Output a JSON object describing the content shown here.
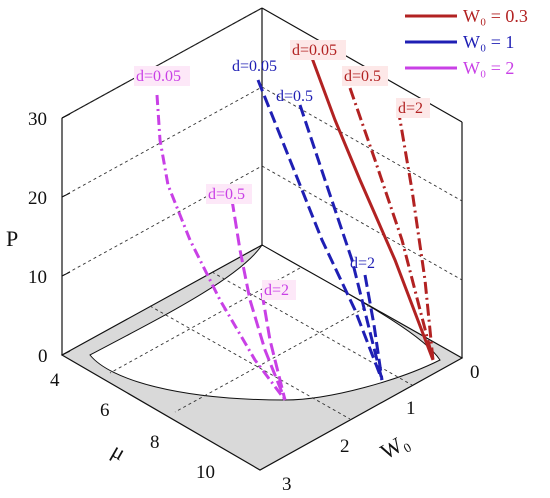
{
  "chart_data": {
    "type": "line",
    "subtype": "3d",
    "zlabel": "P",
    "xlabel": "W₀",
    "ylabel": "μ",
    "zticks": [
      "0",
      "10",
      "20",
      "30"
    ],
    "xticks": [
      "0",
      "1",
      "2",
      "3"
    ],
    "yticks": [
      "4",
      "6",
      "8",
      "10"
    ],
    "zlim": [
      0,
      30
    ],
    "grid": true,
    "legend_position": "top-right",
    "series": [
      {
        "name": "W₀ = 0.3",
        "color": "#b22222",
        "d_labels": [
          "d=0.05",
          "d=0.5",
          "d=2"
        ]
      },
      {
        "name": "W₀ = 1",
        "color": "#1f1fb4",
        "d_labels": [
          "d=0.05",
          "d=0.5",
          "d=2"
        ]
      },
      {
        "name": "W₀ = 2",
        "color": "#c940e6",
        "d_labels": [
          "d=0.05",
          "d=0.5",
          "d=2"
        ]
      }
    ],
    "legend": [
      {
        "label": "W₀ = 0.3",
        "color": "#b22222"
      },
      {
        "label": "W₀ = 1",
        "color": "#1f1fb4"
      },
      {
        "label": "W₀ = 2",
        "color": "#c940e6"
      }
    ]
  }
}
